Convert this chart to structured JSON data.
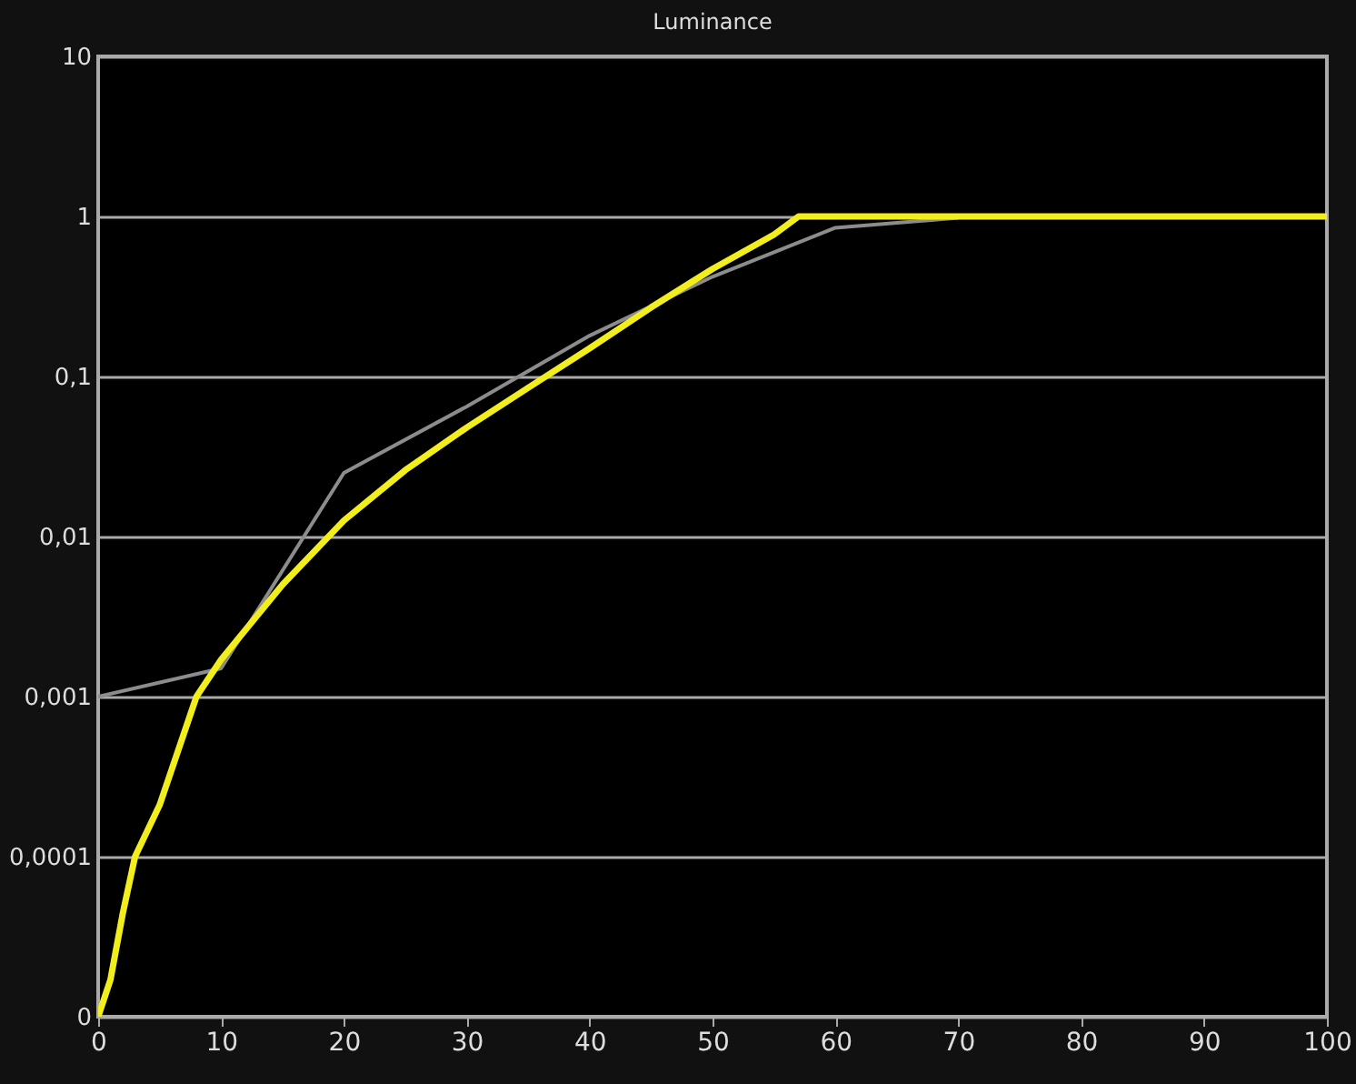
{
  "chart_data": {
    "type": "line",
    "title": "Luminance",
    "log": "y",
    "grid": "y",
    "xlim": [
      0,
      100
    ],
    "xticks": [
      0,
      10,
      20,
      30,
      40,
      50,
      60,
      70,
      80,
      90,
      100
    ],
    "ylim": [
      1e-05,
      10
    ],
    "yticks": [
      {
        "value": 1e-05,
        "label": "0"
      },
      {
        "value": 0.0001,
        "label": "0,0001"
      },
      {
        "value": 0.001,
        "label": "0,001"
      },
      {
        "value": 0.01,
        "label": "0,01"
      },
      {
        "value": 0.1,
        "label": "0,1"
      },
      {
        "value": 1,
        "label": "1"
      },
      {
        "value": 10,
        "label": "10"
      }
    ],
    "series": [
      {
        "color": "#8c8c8c",
        "x": [
          0,
          10,
          20,
          30,
          40,
          50,
          60,
          70
        ],
        "values": [
          0.001,
          0.0015,
          0.025,
          0.065,
          0.18,
          0.42,
          0.85,
          0.98
        ]
      },
      {
        "color": "#f2ee1c",
        "x": [
          0,
          1,
          2,
          3,
          5,
          8,
          10,
          15,
          20,
          25,
          30,
          35,
          40,
          45,
          50,
          55,
          57,
          60,
          70,
          80,
          90,
          100
        ],
        "values": [
          1e-05,
          1.7e-05,
          4.4e-05,
          0.0001,
          0.00021,
          0.001,
          0.0017,
          0.005,
          0.0126,
          0.026,
          0.048,
          0.085,
          0.15,
          0.27,
          0.47,
          0.77,
          1,
          1,
          1,
          1,
          1,
          1
        ]
      }
    ]
  }
}
